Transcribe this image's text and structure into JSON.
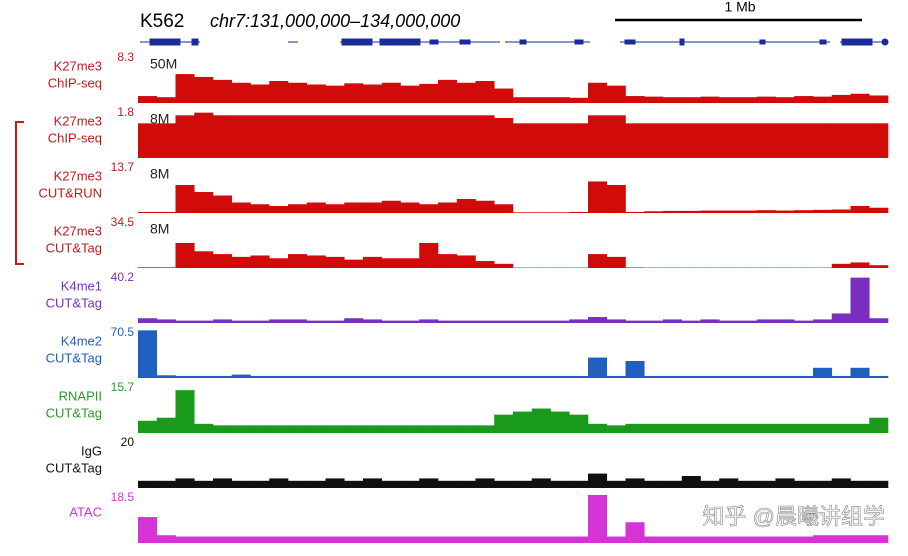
{
  "chart_data": {
    "type": "genome-tracks",
    "title": "K562",
    "region": "chr7:131,000,000–134,000,000",
    "scale_bar": "1 Mb",
    "watermark": "知乎 @晨曦讲组学",
    "tracks": [
      {
        "label": [
          "K27me3",
          "ChIP-seq"
        ],
        "max": 8.3,
        "depth": "50M",
        "color": "#d10a0a",
        "label_color": "#c41a1a",
        "values": [
          1.2,
          1.0,
          5,
          4.5,
          4,
          3.5,
          3.2,
          3.8,
          3.5,
          3.2,
          3,
          3.4,
          3.2,
          3.5,
          3,
          3.3,
          4,
          3.5,
          3.8,
          2.5,
          1,
          1,
          1,
          0.9,
          3.5,
          3,
          1.2,
          1.1,
          1,
          1,
          1.1,
          1,
          1,
          1.1,
          1,
          1.2,
          1.1,
          1.4,
          1.6,
          1.3
        ]
      },
      {
        "label": [
          "K27me3",
          "ChIP-seq"
        ],
        "max": 1.8,
        "depth": "8M",
        "color": "#d10a0a",
        "label_color": "#c41a1a",
        "values": [
          1.3,
          1.3,
          1.6,
          1.7,
          1.6,
          1.6,
          1.6,
          1.6,
          1.6,
          1.6,
          1.6,
          1.6,
          1.6,
          1.6,
          1.6,
          1.6,
          1.6,
          1.6,
          1.6,
          1.5,
          1.3,
          1.3,
          1.3,
          1.3,
          1.6,
          1.6,
          1.3,
          1.3,
          1.3,
          1.3,
          1.3,
          1.3,
          1.3,
          1.3,
          1.3,
          1.3,
          1.3,
          1.3,
          1.3,
          1.3
        ]
      },
      {
        "label": [
          "K27me3",
          "CUT&RUN"
        ],
        "max": 13.7,
        "depth": "8M",
        "color": "#d10a0a",
        "label_color": "#c41a1a",
        "values": [
          0.3,
          0.3,
          8,
          6,
          5,
          3,
          2.5,
          2,
          2.5,
          3,
          2.5,
          3,
          3,
          3.5,
          3,
          2.5,
          3,
          4,
          3.5,
          2.5,
          0.2,
          0.2,
          0.2,
          0.3,
          9,
          8,
          0.3,
          0.5,
          0.6,
          0.6,
          0.7,
          0.7,
          0.7,
          0.8,
          0.7,
          0.8,
          0.9,
          1,
          2,
          1.5
        ]
      },
      {
        "label": [
          "K27me3",
          "CUT&Tag"
        ],
        "max": 34.5,
        "depth": "8M",
        "color": "#d10a0a",
        "label_color": "#c41a1a",
        "values": [
          0.5,
          0.5,
          18,
          12,
          10,
          8,
          9,
          7,
          10,
          9,
          8,
          6,
          8,
          7,
          7,
          18,
          10,
          9,
          5,
          3,
          0.3,
          0.3,
          0.3,
          0.3,
          10,
          8,
          0.4,
          0.3,
          0.3,
          0.3,
          0.3,
          0.3,
          0.3,
          0.3,
          0.3,
          0.3,
          0.3,
          3,
          4,
          2
        ]
      },
      {
        "label": [
          "K4me1",
          "CUT&Tag"
        ],
        "max": 40.2,
        "color": "#7a2fc0",
        "label_color": "#7a2fc0",
        "values": [
          4,
          3,
          2,
          2,
          3,
          2,
          2,
          3,
          3,
          2,
          2,
          4,
          3,
          2,
          2,
          3,
          2,
          2,
          2,
          2,
          2,
          2,
          2,
          3,
          5,
          3,
          2,
          2,
          3,
          2,
          3,
          2,
          2,
          3,
          3,
          2,
          3,
          8,
          38,
          4
        ]
      },
      {
        "label": [
          "K4me2",
          "CUT&Tag"
        ],
        "max": 70.5,
        "color": "#1f5fbf",
        "label_color": "#1f5fbf",
        "values": [
          70,
          4,
          3,
          3,
          3,
          5,
          3,
          3,
          3,
          3,
          3,
          3,
          3,
          3,
          3,
          3,
          3,
          3,
          3,
          3,
          3,
          3,
          3,
          3,
          30,
          3,
          25,
          3,
          3,
          3,
          3,
          3,
          3,
          3,
          3,
          3,
          15,
          3,
          15,
          3
        ]
      },
      {
        "label": [
          "RNAPII",
          "CUT&Tag"
        ],
        "max": 15.7,
        "color": "#1a9a1a",
        "label_color": "#2a9a2a",
        "values": [
          4,
          5,
          14,
          3,
          2.5,
          2.5,
          2.5,
          2.5,
          2.5,
          2.5,
          2.5,
          2.5,
          2.5,
          2.5,
          2.5,
          2.5,
          2.5,
          2.5,
          2.5,
          6,
          7,
          8,
          7,
          6,
          3,
          2.5,
          3,
          3,
          3,
          3,
          3,
          3,
          3,
          3,
          3,
          3,
          3,
          3,
          3,
          5
        ]
      },
      {
        "label": [
          "IgG",
          "CUT&Tag"
        ],
        "max": 20,
        "color": "#111111",
        "label_color": "#111111",
        "values": [
          3,
          3,
          4,
          3,
          4,
          3,
          3,
          4,
          3,
          3,
          4,
          3,
          4,
          3,
          3,
          4,
          3,
          3,
          4,
          3,
          3,
          4,
          3,
          3,
          6,
          3,
          4,
          3,
          3,
          5,
          3,
          4,
          3,
          3,
          4,
          3,
          3,
          4,
          3,
          3
        ]
      },
      {
        "label": [
          "ATAC"
        ],
        "max": 18.5,
        "color": "#d633d6",
        "label_color": "#d633d6",
        "values": [
          10,
          3,
          2.5,
          2.5,
          2.5,
          2.5,
          2.5,
          2.5,
          2.5,
          2.5,
          2.5,
          2.5,
          2.5,
          2.5,
          2.5,
          2.5,
          2.5,
          2.5,
          2.5,
          2.5,
          2.5,
          2.5,
          2.5,
          2.5,
          18.5,
          2.5,
          8,
          2.5,
          2.5,
          2.5,
          2.5,
          2.5,
          2.5,
          2.5,
          2.5,
          2.5,
          3,
          3,
          3,
          3
        ]
      }
    ]
  }
}
